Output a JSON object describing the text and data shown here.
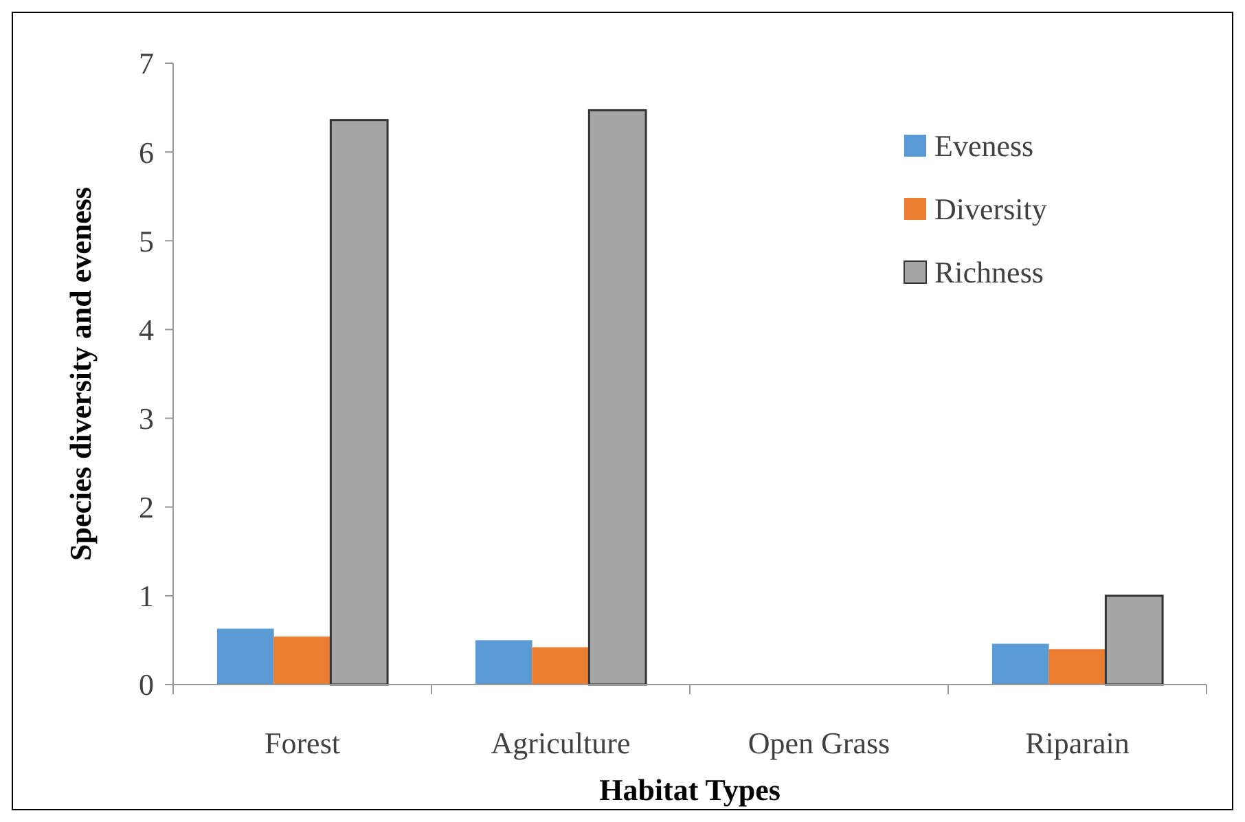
{
  "chart_data": {
    "type": "bar",
    "xlabel": "Habitat Types",
    "ylabel": "Species diversity and eveness",
    "categories": [
      "Forest",
      "Agriculture",
      "Open Grass",
      "Riparain"
    ],
    "series": [
      {
        "name": "Eveness",
        "color": "#5b9bd5",
        "values": [
          0.63,
          0.5,
          0,
          0.46
        ]
      },
      {
        "name": "Diversity",
        "color": "#ed7d31",
        "values": [
          0.54,
          0.42,
          0,
          0.4
        ]
      },
      {
        "name": "Richness",
        "color": "#a5a5a5",
        "values": [
          6.36,
          6.47,
          0,
          1.0
        ]
      }
    ],
    "ylim": [
      0,
      7
    ],
    "yticks": [
      0,
      1,
      2,
      3,
      4,
      5,
      6,
      7
    ],
    "grid": false,
    "legend": "top right"
  }
}
